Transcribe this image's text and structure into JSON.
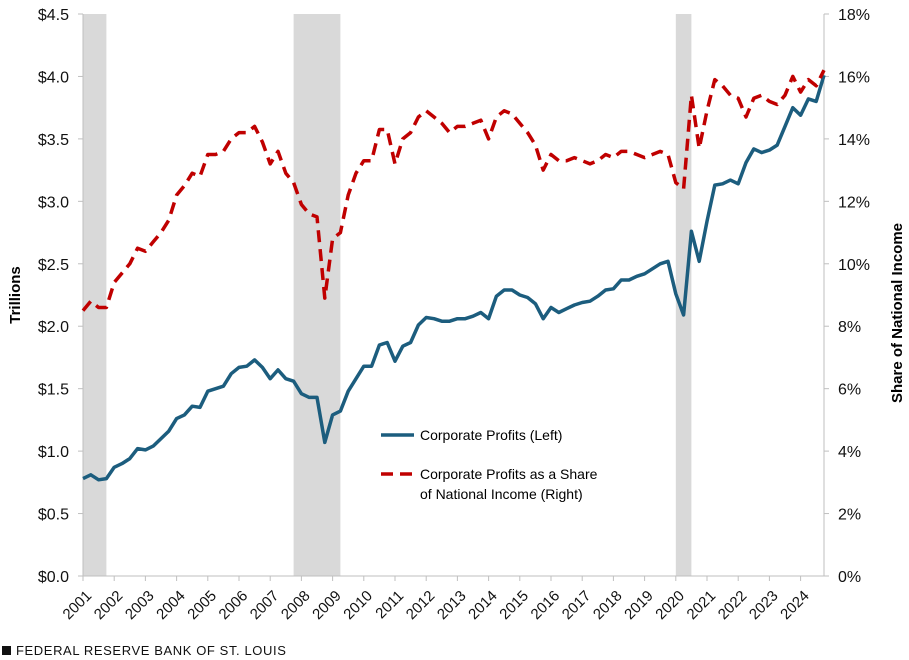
{
  "footer": {
    "source": "FEDERAL RESERVE BANK OF ST. LOUIS"
  },
  "chart_data": {
    "type": "line",
    "title": "",
    "xlabel": "",
    "ylabel": "Trillions",
    "ylabel_right": "Share of National Income",
    "xlim": [
      2001.0,
      2024.75
    ],
    "ylim": [
      0,
      4.5
    ],
    "ylim_right": [
      0,
      18
    ],
    "x_ticks": [
      "2001",
      "2002",
      "2003",
      "2004",
      "2005",
      "2006",
      "2007",
      "2008",
      "2009",
      "2010",
      "2011",
      "2012",
      "2013",
      "2014",
      "2015",
      "2016",
      "2017",
      "2018",
      "2019",
      "2020",
      "2021",
      "2022",
      "2023",
      "2024"
    ],
    "y_ticks": [
      "$0.0",
      "$0.5",
      "$1.0",
      "$1.5",
      "$2.0",
      "$2.5",
      "$3.0",
      "$3.5",
      "$4.0",
      "$4.5"
    ],
    "y_ticks_right": [
      "0%",
      "2%",
      "4%",
      "6%",
      "8%",
      "10%",
      "12%",
      "14%",
      "16%",
      "18%"
    ],
    "recessions": [
      [
        2001.0,
        2001.75
      ],
      [
        2007.75,
        2009.25
      ],
      [
        2020.0,
        2020.5
      ]
    ],
    "grid": false,
    "legend_position": "center",
    "colors": {
      "profits": "#1c5d7e",
      "share": "#c00000",
      "recession": "#d9d9d9",
      "axis": "#bfbfbf"
    },
    "series": [
      {
        "name": "Corporate Profits (Left)",
        "axis": "left",
        "style": "solid",
        "x": [
          2001.0,
          2001.25,
          2001.5,
          2001.75,
          2002.0,
          2002.25,
          2002.5,
          2002.75,
          2003.0,
          2003.25,
          2003.5,
          2003.75,
          2004.0,
          2004.25,
          2004.5,
          2004.75,
          2005.0,
          2005.25,
          2005.5,
          2005.75,
          2006.0,
          2006.25,
          2006.5,
          2006.75,
          2007.0,
          2007.25,
          2007.5,
          2007.75,
          2008.0,
          2008.25,
          2008.5,
          2008.75,
          2009.0,
          2009.25,
          2009.5,
          2009.75,
          2010.0,
          2010.25,
          2010.5,
          2010.75,
          2011.0,
          2011.25,
          2011.5,
          2011.75,
          2012.0,
          2012.25,
          2012.5,
          2012.75,
          2013.0,
          2013.25,
          2013.5,
          2013.75,
          2014.0,
          2014.25,
          2014.5,
          2014.75,
          2015.0,
          2015.25,
          2015.5,
          2015.75,
          2016.0,
          2016.25,
          2016.5,
          2016.75,
          2017.0,
          2017.25,
          2017.5,
          2017.75,
          2018.0,
          2018.25,
          2018.5,
          2018.75,
          2019.0,
          2019.25,
          2019.5,
          2019.75,
          2020.0,
          2020.25,
          2020.5,
          2020.75,
          2021.0,
          2021.25,
          2021.5,
          2021.75,
          2022.0,
          2022.25,
          2022.5,
          2022.75,
          2023.0,
          2023.25,
          2023.5,
          2023.75,
          2024.0,
          2024.25,
          2024.5,
          2024.75
        ],
        "values": [
          0.78,
          0.81,
          0.77,
          0.78,
          0.87,
          0.9,
          0.94,
          1.02,
          1.01,
          1.04,
          1.1,
          1.16,
          1.26,
          1.29,
          1.36,
          1.35,
          1.48,
          1.5,
          1.52,
          1.62,
          1.67,
          1.68,
          1.73,
          1.67,
          1.58,
          1.65,
          1.58,
          1.56,
          1.46,
          1.43,
          1.43,
          1.07,
          1.29,
          1.32,
          1.48,
          1.58,
          1.68,
          1.68,
          1.85,
          1.87,
          1.72,
          1.84,
          1.87,
          2.01,
          2.07,
          2.06,
          2.04,
          2.04,
          2.06,
          2.06,
          2.08,
          2.11,
          2.06,
          2.24,
          2.29,
          2.29,
          2.25,
          2.23,
          2.18,
          2.06,
          2.15,
          2.11,
          2.14,
          2.17,
          2.19,
          2.2,
          2.24,
          2.29,
          2.3,
          2.37,
          2.37,
          2.4,
          2.42,
          2.46,
          2.5,
          2.52,
          2.26,
          2.09,
          2.76,
          2.52,
          2.84,
          3.13,
          3.14,
          3.17,
          3.14,
          3.31,
          3.42,
          3.39,
          3.41,
          3.45,
          3.6,
          3.75,
          3.69,
          3.82,
          3.8,
          4.01
        ]
      },
      {
        "name": "Corporate Profits as a Share of National Income (Right)",
        "axis": "right",
        "style": "dashed",
        "x": [
          2001.0,
          2001.25,
          2001.5,
          2001.75,
          2002.0,
          2002.25,
          2002.5,
          2002.75,
          2003.0,
          2003.25,
          2003.5,
          2003.75,
          2004.0,
          2004.25,
          2004.5,
          2004.75,
          2005.0,
          2005.25,
          2005.5,
          2005.75,
          2006.0,
          2006.25,
          2006.5,
          2006.75,
          2007.0,
          2007.25,
          2007.5,
          2007.75,
          2008.0,
          2008.25,
          2008.5,
          2008.75,
          2009.0,
          2009.25,
          2009.5,
          2009.75,
          2010.0,
          2010.25,
          2010.5,
          2010.75,
          2011.0,
          2011.25,
          2011.5,
          2011.75,
          2012.0,
          2012.25,
          2012.5,
          2012.75,
          2013.0,
          2013.25,
          2013.5,
          2013.75,
          2014.0,
          2014.25,
          2014.5,
          2014.75,
          2015.0,
          2015.25,
          2015.5,
          2015.75,
          2016.0,
          2016.25,
          2016.5,
          2016.75,
          2017.0,
          2017.25,
          2017.5,
          2017.75,
          2018.0,
          2018.25,
          2018.5,
          2018.75,
          2019.0,
          2019.25,
          2019.5,
          2019.75,
          2020.0,
          2020.25,
          2020.5,
          2020.75,
          2021.0,
          2021.25,
          2021.5,
          2021.75,
          2022.0,
          2022.25,
          2022.5,
          2022.75,
          2023.0,
          2023.25,
          2023.5,
          2023.75,
          2024.0,
          2024.25,
          2024.5,
          2024.75
        ],
        "values": [
          8.5,
          8.8,
          8.6,
          8.6,
          9.4,
          9.7,
          10.0,
          10.5,
          10.4,
          10.7,
          11.0,
          11.4,
          12.2,
          12.5,
          12.9,
          12.8,
          13.5,
          13.5,
          13.6,
          14.0,
          14.2,
          14.2,
          14.4,
          13.9,
          13.2,
          13.6,
          12.9,
          12.6,
          11.9,
          11.6,
          11.5,
          8.9,
          10.8,
          11.0,
          12.2,
          12.9,
          13.3,
          13.3,
          14.3,
          14.3,
          13.2,
          14.0,
          14.2,
          14.7,
          14.9,
          14.7,
          14.5,
          14.2,
          14.4,
          14.4,
          14.5,
          14.6,
          14.0,
          14.7,
          14.9,
          14.8,
          14.5,
          14.2,
          13.8,
          13.0,
          13.5,
          13.3,
          13.3,
          13.4,
          13.3,
          13.2,
          13.3,
          13.5,
          13.4,
          13.6,
          13.6,
          13.5,
          13.4,
          13.5,
          13.6,
          13.5,
          12.6,
          12.4,
          15.4,
          13.7,
          14.9,
          15.9,
          15.7,
          15.4,
          15.3,
          14.7,
          15.3,
          15.4,
          15.2,
          15.1,
          15.4,
          16.0,
          15.5,
          15.9,
          15.7,
          16.2
        ]
      }
    ]
  }
}
